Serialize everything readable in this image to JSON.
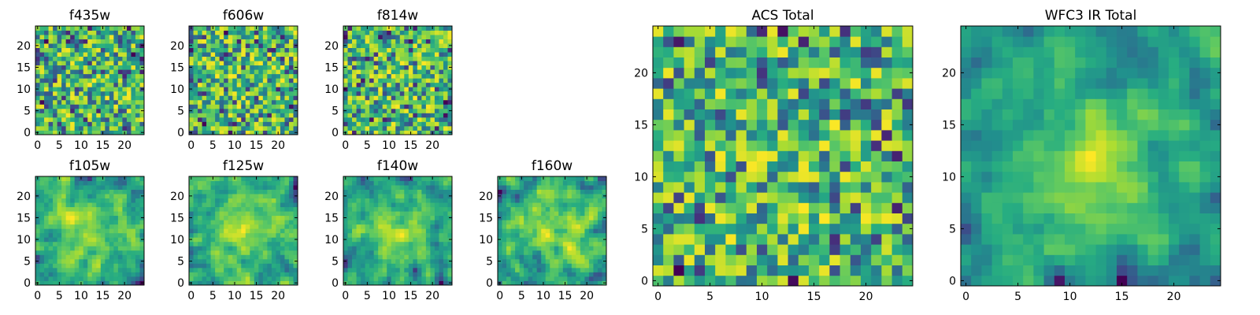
{
  "figure": {
    "colormap": "viridis",
    "frame_color": "#000000"
  },
  "chart_data": [
    {
      "type": "heatmap",
      "title": "f435w",
      "xlim": [
        0,
        24
      ],
      "ylim": [
        0,
        24
      ],
      "x_ticks": [
        "0",
        "5",
        "10",
        "15",
        "20"
      ],
      "y_ticks": [
        "0",
        "5",
        "10",
        "15",
        "20"
      ],
      "grid": 24,
      "seed": 11,
      "smooth": 0,
      "center_boost": 0.05
    },
    {
      "type": "heatmap",
      "title": "f606w",
      "xlim": [
        0,
        24
      ],
      "ylim": [
        0,
        24
      ],
      "x_ticks": [
        "0",
        "5",
        "10",
        "15",
        "20"
      ],
      "y_ticks": [
        "0",
        "5",
        "10",
        "15",
        "20"
      ],
      "grid": 24,
      "seed": 23,
      "smooth": 0,
      "center_boost": 0.05
    },
    {
      "type": "heatmap",
      "title": "f814w",
      "xlim": [
        0,
        24
      ],
      "ylim": [
        0,
        24
      ],
      "x_ticks": [
        "0",
        "5",
        "10",
        "15",
        "20"
      ],
      "y_ticks": [
        "0",
        "5",
        "10",
        "15",
        "20"
      ],
      "grid": 24,
      "seed": 37,
      "smooth": 0,
      "center_boost": 0.05
    },
    {
      "type": "heatmap",
      "title": "f105w",
      "xlim": [
        0,
        24
      ],
      "ylim": [
        0,
        24
      ],
      "x_ticks": [
        "0",
        "5",
        "10",
        "15",
        "20"
      ],
      "y_ticks": [
        "0",
        "5",
        "10",
        "15",
        "20"
      ],
      "grid": 24,
      "seed": 41,
      "smooth": 1,
      "center_boost": 0.3
    },
    {
      "type": "heatmap",
      "title": "f125w",
      "xlim": [
        0,
        24
      ],
      "ylim": [
        0,
        24
      ],
      "x_ticks": [
        "0",
        "5",
        "10",
        "15",
        "20"
      ],
      "y_ticks": [
        "0",
        "5",
        "10",
        "15",
        "20"
      ],
      "grid": 24,
      "seed": 53,
      "smooth": 1,
      "center_boost": 0.3
    },
    {
      "type": "heatmap",
      "title": "f140w",
      "xlim": [
        0,
        24
      ],
      "ylim": [
        0,
        24
      ],
      "x_ticks": [
        "0",
        "5",
        "10",
        "15",
        "20"
      ],
      "y_ticks": [
        "0",
        "5",
        "10",
        "15",
        "20"
      ],
      "grid": 24,
      "seed": 67,
      "smooth": 1,
      "center_boost": 0.3
    },
    {
      "type": "heatmap",
      "title": "f160w",
      "xlim": [
        0,
        24
      ],
      "ylim": [
        0,
        24
      ],
      "x_ticks": [
        "0",
        "5",
        "10",
        "15",
        "20"
      ],
      "y_ticks": [
        "0",
        "5",
        "10",
        "15",
        "20"
      ],
      "grid": 24,
      "seed": 79,
      "smooth": 1,
      "center_boost": 0.3
    },
    {
      "type": "heatmap",
      "title": "ACS Total",
      "xlim": [
        0,
        24
      ],
      "ylim": [
        0,
        24
      ],
      "x_ticks": [
        "0",
        "5",
        "10",
        "15",
        "20"
      ],
      "y_ticks": [
        "0",
        "5",
        "10",
        "15",
        "20"
      ],
      "grid": 24,
      "seed": 97,
      "smooth": 0,
      "center_boost": 0.1
    },
    {
      "type": "heatmap",
      "title": "WFC3 IR Total",
      "xlim": [
        0,
        24
      ],
      "ylim": [
        0,
        24
      ],
      "x_ticks": [
        "0",
        "5",
        "10",
        "15",
        "20"
      ],
      "y_ticks": [
        "0",
        "5",
        "10",
        "15",
        "20"
      ],
      "grid": 24,
      "seed": 101,
      "smooth": 1,
      "center_boost": 0.45
    }
  ]
}
